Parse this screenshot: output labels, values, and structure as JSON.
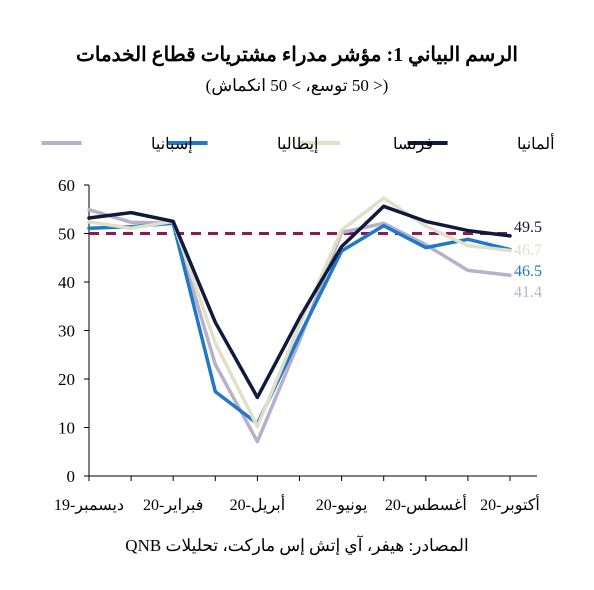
{
  "chart_data": {
    "type": "line",
    "title": "الرسم البياني 1: مؤشر مدراء مشتريات قطاع الخدمات",
    "subtitle": "(< 50 توسع، > 50 انكماش)",
    "source": "المصادر: هيفر، آي إتش إس ماركت، تحليلات QNB",
    "ylim": [
      0,
      60
    ],
    "yticks": [
      0,
      10,
      20,
      30,
      40,
      50,
      60
    ],
    "x": [
      "Dec-19",
      "Jan-20",
      "Feb-20",
      "Mar-20",
      "Apr-20",
      "May-20",
      "Jun-20",
      "Jul-20",
      "Aug-20",
      "Sep-20",
      "Oct-20"
    ],
    "xtick_labels": [
      {
        "index": 0,
        "label": "ديسمبر-19"
      },
      {
        "index": 2,
        "label": "فبراير-20"
      },
      {
        "index": 4,
        "label": "أبريل-20"
      },
      {
        "index": 6,
        "label": "يونيو-20"
      },
      {
        "index": 8,
        "label": "أغسطس-20"
      },
      {
        "index": 10,
        "label": "أكتوبر-20"
      }
    ],
    "threshold": 50,
    "threshold_color": "#8B1A5C",
    "legend_position": "top",
    "series": [
      {
        "name": "ألمانيا",
        "color": "#0F1A3C",
        "values": [
          53.2,
          54.3,
          52.5,
          31.7,
          16.2,
          32.6,
          47.3,
          55.6,
          52.5,
          50.6,
          49.5
        ]
      },
      {
        "name": "فرنسا",
        "color": "#E0DFC8",
        "values": [
          52.4,
          51.1,
          52.5,
          27.4,
          10.2,
          31.1,
          50.7,
          57.3,
          51.5,
          47.5,
          46.5
        ]
      },
      {
        "name": "إيطاليا",
        "color": "#1F78C8",
        "values": [
          51.1,
          51.4,
          52.1,
          17.4,
          10.8,
          28.9,
          46.4,
          51.6,
          47.1,
          48.8,
          46.7
        ]
      },
      {
        "name": "إسبانيا",
        "color": "#B7B0CB",
        "values": [
          54.9,
          52.3,
          52.1,
          23.0,
          7.1,
          27.9,
          50.2,
          52.1,
          47.7,
          42.4,
          41.4
        ]
      }
    ],
    "end_labels": [
      "49.5",
      "46.7",
      "46.5",
      "41.4"
    ]
  }
}
